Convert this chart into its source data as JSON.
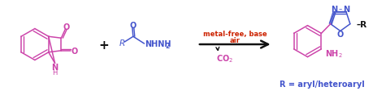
{
  "bg_color": "#ffffff",
  "pink": "#cc44aa",
  "blue": "#4455cc",
  "red": "#cc2200",
  "black": "#111111",
  "figsize": [
    4.75,
    1.14
  ],
  "dpi": 100,
  "arrow_label_top": "metal-free, base",
  "arrow_label_mid": "air",
  "arrow_label_bot": "CO₂",
  "r_footnote": "R = aryl/heteroaryl"
}
